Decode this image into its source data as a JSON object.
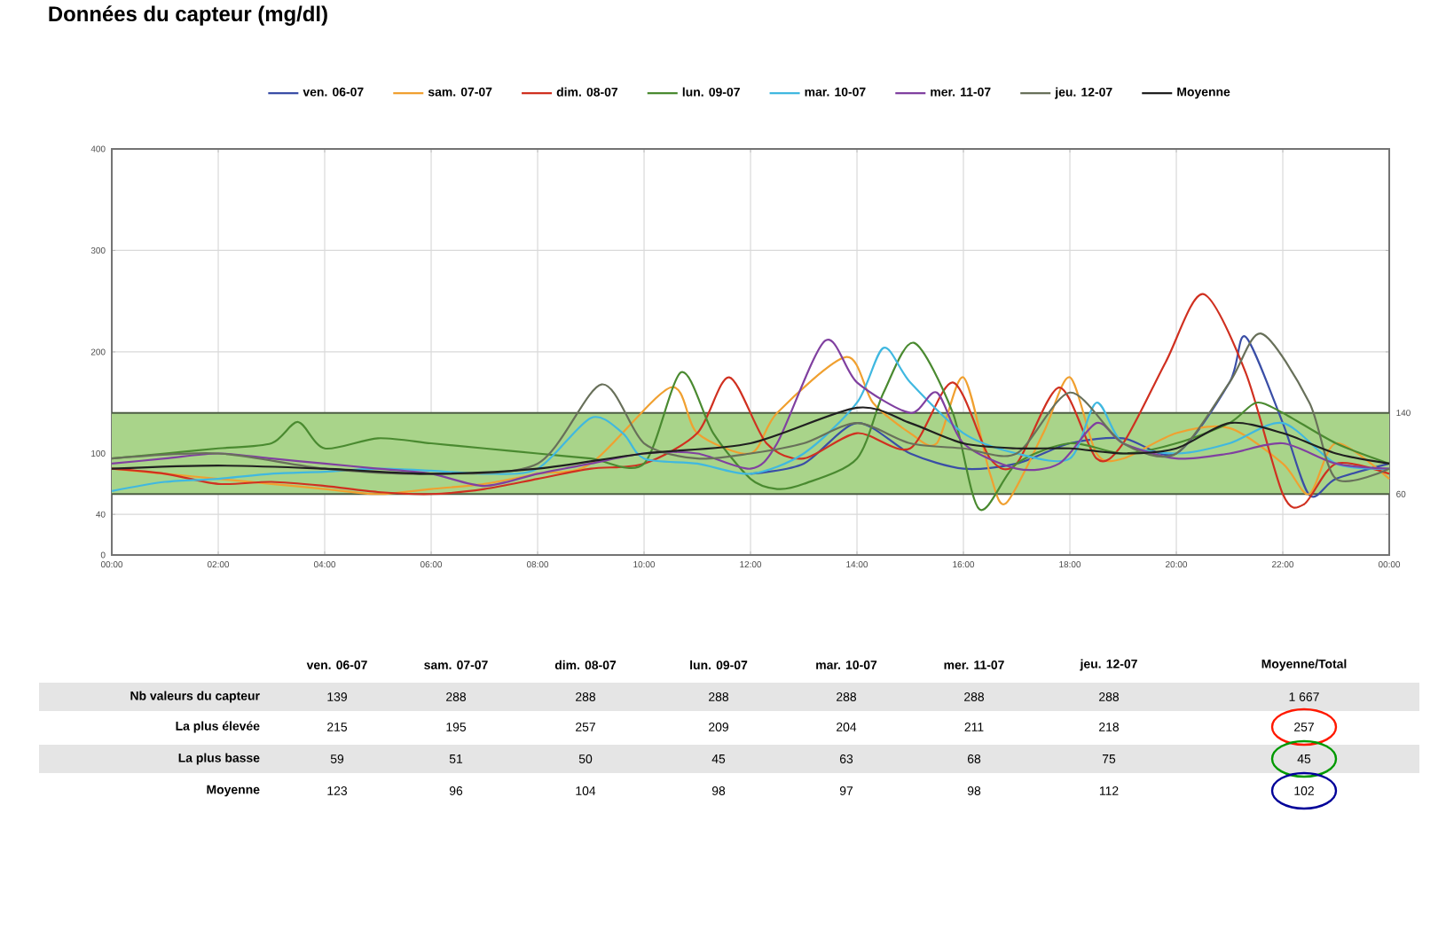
{
  "chart_data": [
    {
      "type": "line",
      "title": "Données du capteur (mg/dl)",
      "legend": "top",
      "grid": true,
      "marker": "none",
      "line_style": "solid",
      "xlim": [
        0,
        24
      ],
      "ylim": [
        0,
        400
      ],
      "xticks": [
        {
          "value": 0,
          "label": "00:00"
        },
        {
          "value": 2,
          "label": "02:00"
        },
        {
          "value": 4,
          "label": "04:00"
        },
        {
          "value": 6,
          "label": "06:00"
        },
        {
          "value": 8,
          "label": "08:00"
        },
        {
          "value": 10,
          "label": "10:00"
        },
        {
          "value": 12,
          "label": "12:00"
        },
        {
          "value": 14,
          "label": "14:00"
        },
        {
          "value": 16,
          "label": "16:00"
        },
        {
          "value": 18,
          "label": "18:00"
        },
        {
          "value": 20,
          "label": "20:00"
        },
        {
          "value": 22,
          "label": "22:00"
        },
        {
          "value": 24,
          "label": "00:00"
        }
      ],
      "yticks": [
        0,
        40,
        100,
        200,
        300,
        400
      ],
      "bands": [
        {
          "axis": "y",
          "from": 60,
          "to": 140,
          "color": "#a9d48a"
        }
      ],
      "ref_lines": [
        {
          "axis": "y",
          "value": 140,
          "label": "140",
          "color": "#4e5e44"
        },
        {
          "axis": "y",
          "value": 60,
          "label": "60",
          "color": "#4e5e44"
        }
      ],
      "series": [
        {
          "name": "ven. 06-07",
          "color": "#3a4ea6",
          "x": [
            12,
            13,
            14,
            15,
            16,
            17,
            18,
            19,
            20,
            21,
            21.3,
            22,
            22.5,
            23,
            24
          ],
          "values": [
            80,
            90,
            130,
            100,
            85,
            90,
            110,
            115,
            100,
            170,
            215,
            130,
            59,
            75,
            90
          ]
        },
        {
          "name": "sam. 07-07",
          "color": "#f0a030",
          "x": [
            0,
            1,
            2,
            3,
            4,
            5,
            6,
            7,
            8,
            9,
            10.5,
            11,
            12,
            12.5,
            13.8,
            14.3,
            15,
            15.5,
            16,
            16.5,
            16.8,
            17.5,
            18,
            18.5,
            19,
            20,
            21,
            22,
            22.5,
            23,
            24
          ],
          "values": [
            85,
            80,
            75,
            70,
            65,
            60,
            65,
            70,
            80,
            90,
            165,
            120,
            100,
            140,
            195,
            150,
            120,
            110,
            175,
            80,
            51,
            120,
            175,
            100,
            95,
            120,
            125,
            90,
            60,
            110,
            75
          ]
        },
        {
          "name": "dim. 08-07",
          "color": "#d03020",
          "x": [
            0,
            1,
            2,
            3,
            4,
            5,
            6,
            7,
            8,
            9,
            10,
            11,
            11.6,
            12.3,
            13,
            14,
            15,
            15.8,
            16.5,
            17,
            17.8,
            18.5,
            19,
            19.8,
            20.5,
            21.3,
            22,
            22.4,
            23,
            24
          ],
          "values": [
            85,
            80,
            70,
            72,
            68,
            62,
            60,
            65,
            75,
            85,
            90,
            120,
            175,
            110,
            95,
            120,
            105,
            170,
            95,
            90,
            165,
            95,
            110,
            190,
            257,
            180,
            60,
            50,
            90,
            80
          ]
        },
        {
          "name": "lun. 09-07",
          "color": "#4a8a30",
          "x": [
            0,
            1,
            2,
            3,
            3.5,
            4,
            5,
            6,
            7,
            8,
            9,
            10,
            10.7,
            11.3,
            12,
            12.5,
            13,
            14,
            14.5,
            15.07,
            15.8,
            16.3,
            17,
            18,
            19,
            20,
            21,
            21.5,
            22,
            23,
            24
          ],
          "values": [
            95,
            100,
            105,
            110,
            131,
            105,
            115,
            110,
            105,
            100,
            95,
            90,
            180,
            120,
            75,
            65,
            70,
            95,
            160,
            209,
            140,
            45,
            90,
            110,
            100,
            110,
            130,
            150,
            140,
            110,
            90
          ]
        },
        {
          "name": "mar. 10-07",
          "color": "#40b8e0",
          "x": [
            0,
            1,
            2,
            3,
            4,
            5,
            6,
            7,
            8,
            9,
            9.6,
            10,
            11,
            12,
            13,
            14,
            14.5,
            15,
            16,
            17,
            18,
            18.5,
            19,
            20,
            21,
            22,
            23,
            24
          ],
          "values": [
            63,
            72,
            75,
            80,
            82,
            85,
            83,
            80,
            85,
            135,
            120,
            95,
            90,
            80,
            100,
            150,
            204,
            170,
            120,
            100,
            95,
            150,
            110,
            100,
            110,
            130,
            90,
            85
          ]
        },
        {
          "name": "mer. 11-07",
          "color": "#8040a0",
          "x": [
            0,
            1,
            2,
            3,
            4,
            5,
            6,
            7,
            8,
            9,
            10,
            11,
            12,
            12.5,
            13.4,
            14,
            15,
            15.5,
            16,
            17,
            17.8,
            18.5,
            19,
            20,
            21,
            22,
            23,
            24
          ],
          "values": [
            90,
            95,
            100,
            95,
            90,
            85,
            80,
            68,
            80,
            90,
            100,
            100,
            85,
            110,
            211,
            170,
            140,
            160,
            110,
            85,
            90,
            130,
            110,
            95,
            100,
            110,
            90,
            85
          ]
        },
        {
          "name": "jeu. 12-07",
          "color": "#68705a",
          "x": [
            0,
            2,
            4,
            6,
            8,
            9.2,
            10,
            11,
            12,
            13,
            14,
            15,
            16,
            17,
            18,
            19,
            20,
            21,
            21.6,
            22.5,
            23,
            24
          ],
          "values": [
            95,
            100,
            85,
            80,
            90,
            168,
            110,
            95,
            100,
            110,
            130,
            110,
            105,
            100,
            160,
            110,
            100,
            170,
            218,
            150,
            75,
            85
          ]
        },
        {
          "name": "Moyenne",
          "color": "#202020",
          "x": [
            0,
            2,
            4,
            6,
            8,
            10,
            12,
            14,
            15,
            16,
            17,
            18,
            19,
            20,
            21,
            22,
            23,
            24
          ],
          "values": [
            85,
            88,
            85,
            80,
            85,
            100,
            110,
            145,
            130,
            110,
            105,
            105,
            100,
            105,
            130,
            120,
            100,
            90
          ]
        }
      ]
    },
    {
      "type": "other",
      "annotations": [
        "ven. 06-07",
        "sam. 07-07",
        "dim. 08-07",
        "lun. 09-07",
        "mar. 10-07",
        "mer. 11-07",
        "jeu. 12-07",
        "Moyenne/Total",
        "Nb valeurs du capteur",
        "139",
        "288",
        "288",
        "288",
        "288",
        "288",
        "288",
        "1 667",
        "La plus élevée",
        "215",
        "195",
        "257",
        "209",
        "204",
        "211",
        "218",
        "257",
        "La plus basse",
        "59",
        "51",
        "50",
        "45",
        "63",
        "68",
        "75",
        "45",
        "Moyenne",
        "123",
        "96",
        "104",
        "98",
        "97",
        "98",
        "112",
        "102"
      ]
    }
  ]
}
